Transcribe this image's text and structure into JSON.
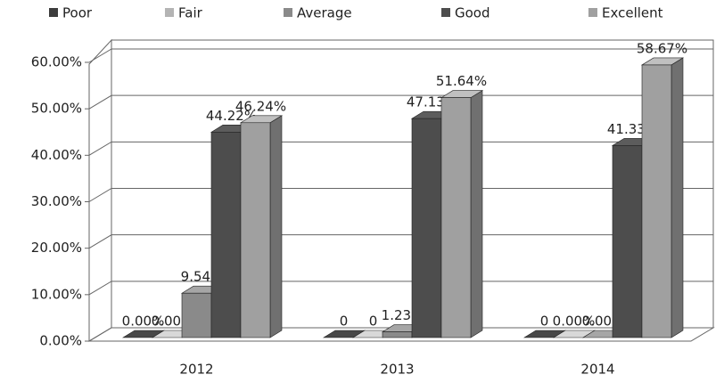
{
  "chart_data": {
    "type": "bar3d",
    "categories": [
      "2012",
      "2013",
      "2014"
    ],
    "series": [
      {
        "name": "Poor",
        "color": "#3c3c3c",
        "values": [
          0,
          0,
          0
        ],
        "value_labels": [
          "0.00%",
          "0",
          "0"
        ]
      },
      {
        "name": "Fair",
        "color": "#b4b4b4",
        "values": [
          0,
          0,
          0
        ],
        "value_labels": [
          "0.00%",
          "0",
          "0.00%"
        ]
      },
      {
        "name": "Average",
        "color": "#8a8a8a",
        "values": [
          9.54,
          1.23,
          0
        ],
        "value_labels": [
          "9.54%",
          "1.23%",
          "0.00%"
        ]
      },
      {
        "name": "Good",
        "color": "#4d4d4d",
        "values": [
          44.22,
          47.13,
          41.33
        ],
        "value_labels": [
          "44.22%",
          "47.13%",
          "41.33%"
        ]
      },
      {
        "name": "Excellent",
        "color": "#a0a0a0",
        "values": [
          46.24,
          51.64,
          58.67
        ],
        "value_labels": [
          "46.24%",
          "51.64%",
          "58.67%"
        ]
      }
    ],
    "ylim": [
      0,
      60
    ],
    "yticks": [
      {
        "value": 0,
        "label": "0.00%"
      },
      {
        "value": 10,
        "label": "10.00%"
      },
      {
        "value": 20,
        "label": "20.00%"
      },
      {
        "value": 30,
        "label": "30.00%"
      },
      {
        "value": 40,
        "label": "40.00%"
      },
      {
        "value": 50,
        "label": "50.00%"
      },
      {
        "value": 60,
        "label": "60.00%"
      }
    ],
    "grid": true,
    "legend": "top"
  }
}
